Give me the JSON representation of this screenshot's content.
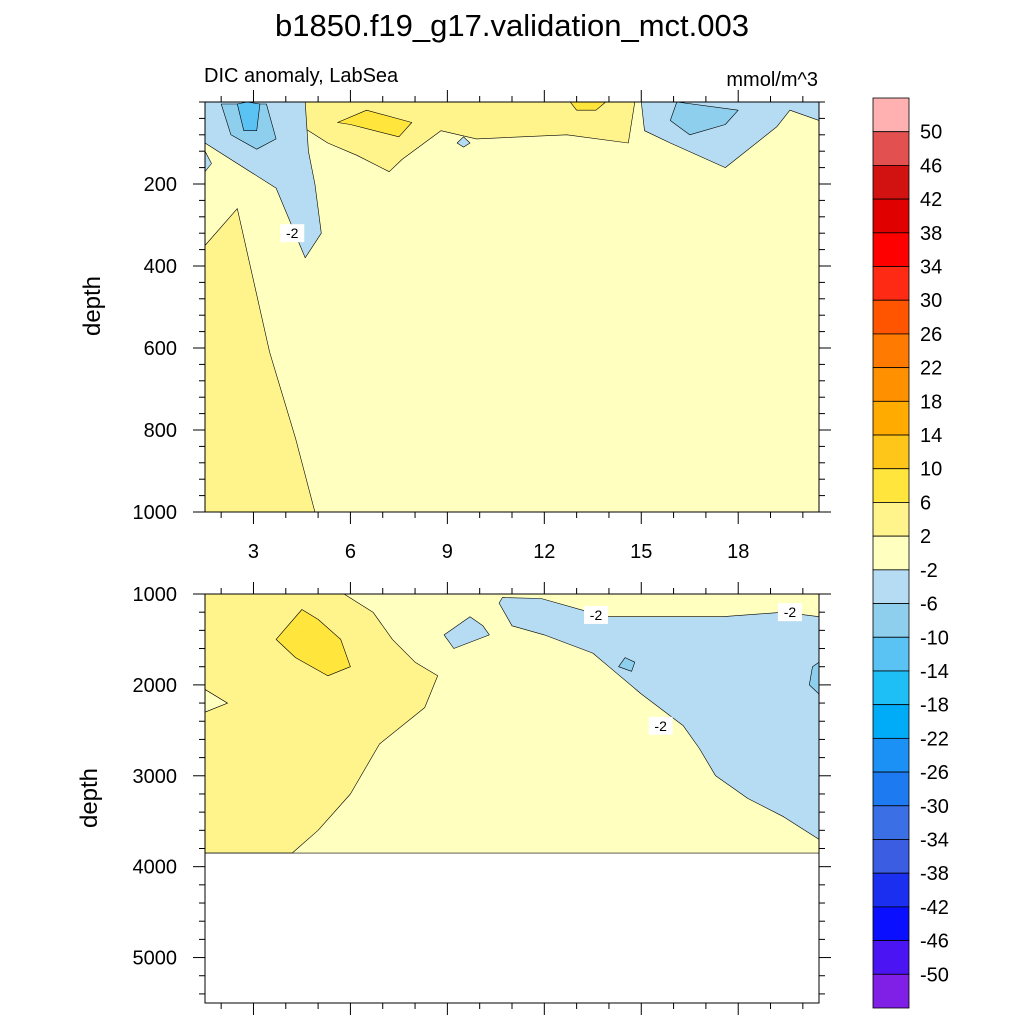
{
  "figure": {
    "title": "b1850.f19_g17.validation_mct.003",
    "subtitle_left": "DIC anomaly, LabSea",
    "units": "mmol/m^3",
    "ylabel": "depth"
  },
  "chart_data": [
    {
      "type": "heatmap",
      "panel": "upper",
      "title": "DIC anomaly, LabSea",
      "units": "mmol/m^3",
      "xlabel": "",
      "ylabel": "depth",
      "xlim": [
        1.5,
        20.5
      ],
      "ylim": [
        1000,
        0
      ],
      "x_ticks": [
        3,
        6,
        9,
        12,
        15,
        18
      ],
      "y_ticks": [
        200,
        400,
        600,
        800,
        1000
      ],
      "x_tick_labels": [
        "3",
        "6",
        "9",
        "12",
        "15",
        "18"
      ],
      "y_tick_labels": [
        "200",
        "400",
        "600",
        "800",
        "1000"
      ],
      "background_level": "-2..2",
      "contour_labels": [
        {
          "text": "-2",
          "x": 4.2,
          "depth": 320
        }
      ],
      "regions": [
        {
          "level": "2..6",
          "color": "#fff48c",
          "points": [
            [
              1.5,
              350
            ],
            [
              2.5,
              260
            ],
            [
              3.5,
              610
            ],
            [
              4.3,
              820
            ],
            [
              4.9,
              1000
            ],
            [
              1.5,
              1000
            ]
          ]
        },
        {
          "level": "2..6",
          "color": "#fff48c",
          "points": [
            [
              3.7,
              0
            ],
            [
              10.9,
              0
            ],
            [
              12.8,
              0
            ],
            [
              14.8,
              0
            ],
            [
              14.6,
              100
            ],
            [
              12.7,
              80
            ],
            [
              9.9,
              90
            ],
            [
              8.8,
              70
            ],
            [
              7.6,
              140
            ],
            [
              7.2,
              170
            ],
            [
              6.2,
              130
            ],
            [
              5.3,
              100
            ],
            [
              4.3,
              50
            ]
          ]
        },
        {
          "level": "6..10",
          "color": "#ffe53c",
          "points": [
            [
              5.6,
              50
            ],
            [
              6.5,
              20
            ],
            [
              7.9,
              50
            ],
            [
              7.5,
              85
            ],
            [
              6.0,
              55
            ]
          ]
        },
        {
          "level": "6..10",
          "color": "#ffe53c",
          "points": [
            [
              12.8,
              0
            ],
            [
              13.9,
              0
            ],
            [
              13.6,
              20
            ],
            [
              13.0,
              20
            ]
          ]
        },
        {
          "level": "-6..-2",
          "color": "#b5dcf2",
          "points": [
            [
              1.5,
              0
            ],
            [
              4.6,
              0
            ],
            [
              4.7,
              120
            ],
            [
              4.9,
              200
            ],
            [
              5.1,
              320
            ],
            [
              4.6,
              380
            ],
            [
              3.7,
              210
            ],
            [
              1.5,
              100
            ]
          ]
        },
        {
          "level": "-6..-2",
          "color": "#b5dcf2",
          "points": [
            [
              1.5,
              120
            ],
            [
              1.7,
              150
            ],
            [
              1.5,
              170
            ]
          ]
        },
        {
          "level": "-6..-2",
          "color": "#b5dcf2",
          "points": [
            [
              9.3,
              100
            ],
            [
              9.5,
              85
            ],
            [
              9.7,
              100
            ],
            [
              9.5,
              110
            ]
          ]
        },
        {
          "level": "-6..-2",
          "color": "#b5dcf2",
          "points": [
            [
              15.0,
              0
            ],
            [
              20.5,
              0
            ],
            [
              20.5,
              45
            ],
            [
              19.6,
              20
            ],
            [
              19.2,
              60
            ],
            [
              17.6,
              160
            ],
            [
              15.9,
              100
            ],
            [
              15.1,
              70
            ]
          ]
        },
        {
          "level": "-10..-6",
          "color": "#8ecfee",
          "points": [
            [
              2.0,
              5
            ],
            [
              3.4,
              5
            ],
            [
              3.7,
              90
            ],
            [
              3.1,
              115
            ],
            [
              2.3,
              80
            ]
          ]
        },
        {
          "level": "-10..-6",
          "color": "#8ecfee",
          "points": [
            [
              16.1,
              0
            ],
            [
              18.0,
              20
            ],
            [
              17.6,
              55
            ],
            [
              16.5,
              80
            ],
            [
              15.9,
              45
            ]
          ]
        },
        {
          "level": "-14..-10",
          "color": "#5bc2f4",
          "points": [
            [
              2.5,
              5
            ],
            [
              2.8,
              0
            ],
            [
              3.2,
              5
            ],
            [
              3.1,
              70
            ],
            [
              2.7,
              70
            ]
          ]
        }
      ]
    },
    {
      "type": "heatmap",
      "panel": "lower",
      "title": "",
      "xlabel": "",
      "ylabel": "depth",
      "xlim": [
        1.5,
        20.5
      ],
      "ylim": [
        5500,
        1000
      ],
      "x_ticks": [
        3,
        6,
        9,
        12,
        15,
        18
      ],
      "y_ticks": [
        1000,
        2000,
        3000,
        4000,
        5000
      ],
      "x_tick_labels": [],
      "y_tick_labels": [
        "1000",
        "2000",
        "3000",
        "4000",
        "5000"
      ],
      "data_bottom": 3850,
      "background_level": "-2..2",
      "contour_labels": [
        {
          "text": "-2",
          "x": 13.6,
          "depth": 1230
        },
        {
          "text": "-2",
          "x": 19.6,
          "depth": 1200
        },
        {
          "text": "-2",
          "x": 15.6,
          "depth": 2450
        }
      ],
      "regions": [
        {
          "level": "-2..2",
          "color": "#ffffc0",
          "points": [
            [
              1.5,
              2050
            ],
            [
              2.2,
              2200
            ],
            [
              1.5,
              2300
            ]
          ]
        },
        {
          "level": "2..6",
          "color": "#fff48c",
          "points": [
            [
              1.5,
              1000
            ],
            [
              5.8,
              1000
            ],
            [
              6.7,
              1200
            ],
            [
              7.3,
              1500
            ],
            [
              8.0,
              1750
            ],
            [
              8.7,
              1900
            ],
            [
              8.3,
              2250
            ],
            [
              6.9,
              2650
            ],
            [
              6.0,
              3200
            ],
            [
              5.0,
              3600
            ],
            [
              4.2,
              3850
            ],
            [
              1.5,
              3850
            ],
            [
              1.5,
              2300
            ],
            [
              2.2,
              2200
            ],
            [
              1.5,
              2050
            ]
          ]
        },
        {
          "level": "6..10",
          "color": "#ffe53c",
          "points": [
            [
              3.7,
              1500
            ],
            [
              4.5,
              1170
            ],
            [
              5.0,
              1280
            ],
            [
              5.7,
              1500
            ],
            [
              6.0,
              1800
            ],
            [
              5.3,
              1900
            ],
            [
              4.3,
              1700
            ]
          ]
        },
        {
          "level": "-6..-2",
          "color": "#b5dcf2",
          "points": [
            [
              8.9,
              1450
            ],
            [
              9.7,
              1250
            ],
            [
              10.1,
              1350
            ],
            [
              10.3,
              1450
            ],
            [
              9.2,
              1600
            ]
          ]
        },
        {
          "level": "-6..-2",
          "color": "#b5dcf2",
          "points": [
            [
              10.6,
              1100
            ],
            [
              10.7,
              1040
            ],
            [
              11.9,
              1050
            ],
            [
              13.9,
              1250
            ],
            [
              15.4,
              1250
            ],
            [
              17.5,
              1250
            ],
            [
              19.4,
              1200
            ],
            [
              20.5,
              1250
            ],
            [
              20.5,
              3700
            ],
            [
              19.4,
              3450
            ],
            [
              18.3,
              3250
            ],
            [
              17.3,
              3000
            ],
            [
              16.8,
              2700
            ],
            [
              16.3,
              2450
            ],
            [
              15.0,
              2100
            ],
            [
              14.0,
              1800
            ],
            [
              13.5,
              1650
            ],
            [
              12.0,
              1450
            ],
            [
              11.0,
              1350
            ]
          ]
        },
        {
          "level": "-10..-6",
          "color": "#8ecfee",
          "points": [
            [
              14.5,
              1700
            ],
            [
              14.8,
              1750
            ],
            [
              14.7,
              1850
            ],
            [
              14.3,
              1800
            ]
          ]
        },
        {
          "level": "-10..-6",
          "color": "#8ecfee",
          "points": [
            [
              20.3,
              1800
            ],
            [
              20.5,
              1750
            ],
            [
              20.5,
              2100
            ],
            [
              20.2,
              2000
            ]
          ]
        }
      ]
    }
  ],
  "colorbar": {
    "levels": [
      "50",
      "46",
      "42",
      "38",
      "34",
      "30",
      "26",
      "22",
      "18",
      "14",
      "10",
      "6",
      "2",
      "-2",
      "-6",
      "-10",
      "-14",
      "-18",
      "-22",
      "-26",
      "-30",
      "-34",
      "-38",
      "-42",
      "-46",
      "-50"
    ],
    "colors": [
      "#ffb0b0",
      "#e35050",
      "#d21111",
      "#e00000",
      "#ff0000",
      "#ff2a14",
      "#ff5500",
      "#ff7a00",
      "#ff9100",
      "#ffab00",
      "#ffc61a",
      "#ffe53c",
      "#fff48c",
      "#ffffc0",
      "#b5dcf2",
      "#8ecfee",
      "#5bc2f4",
      "#1ebef7",
      "#00acf7",
      "#1b90f5",
      "#1e7af0",
      "#3a6fe6",
      "#3a5de2",
      "#1b2ff0",
      "#0a10ff",
      "#4a15f2",
      "#8020e6"
    ]
  }
}
